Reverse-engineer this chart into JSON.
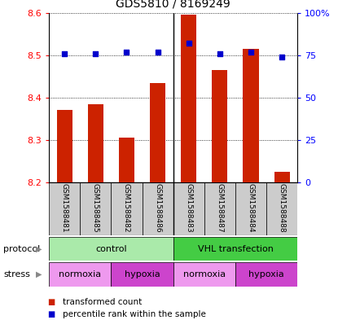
{
  "title": "GDS5810 / 8169249",
  "samples": [
    "GSM1588481",
    "GSM1588485",
    "GSM1588482",
    "GSM1588486",
    "GSM1588483",
    "GSM1588487",
    "GSM1588484",
    "GSM1588488"
  ],
  "bar_values": [
    8.37,
    8.385,
    8.305,
    8.435,
    8.595,
    8.465,
    8.515,
    8.225
  ],
  "bar_bottom": 8.2,
  "percentile_values": [
    76,
    76,
    77,
    77,
    82,
    76,
    77,
    74
  ],
  "percentile_scale_max": 100,
  "ylim_left": [
    8.2,
    8.6
  ],
  "ylim_right": [
    0,
    100
  ],
  "yticks_left": [
    8.2,
    8.3,
    8.4,
    8.5,
    8.6
  ],
  "yticks_right": [
    0,
    25,
    50,
    75,
    100
  ],
  "ytick_labels_right": [
    "0",
    "25",
    "50",
    "75",
    "100%"
  ],
  "bar_color": "#cc2200",
  "dot_color": "#0000cc",
  "protocol_groups": [
    {
      "label": "control",
      "start": 0,
      "end": 4,
      "color": "#aaeaaa"
    },
    {
      "label": "VHL transfection",
      "start": 4,
      "end": 8,
      "color": "#44cc44"
    }
  ],
  "stress_groups": [
    {
      "label": "normoxia",
      "start": 0,
      "end": 2,
      "color": "#ee99ee"
    },
    {
      "label": "hypoxia",
      "start": 2,
      "end": 4,
      "color": "#cc44cc"
    },
    {
      "label": "normoxia",
      "start": 4,
      "end": 6,
      "color": "#ee99ee"
    },
    {
      "label": "hypoxia",
      "start": 6,
      "end": 8,
      "color": "#cc44cc"
    }
  ],
  "label_protocol": "protocol",
  "label_stress": "stress",
  "sample_area_color": "#cccccc",
  "bar_width": 0.5,
  "fig_width": 4.15,
  "fig_height": 3.93,
  "fig_dpi": 100
}
